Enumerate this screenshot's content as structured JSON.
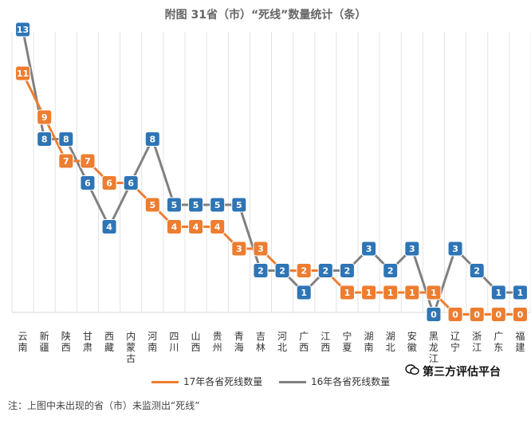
{
  "chart_data": {
    "type": "line",
    "title": "附图  31省（市）“死线”数量统计（条）",
    "categories": [
      "云南",
      "新疆",
      "陕西",
      "甘肃",
      "西藏",
      "内蒙古",
      "河南",
      "四川",
      "山西",
      "贵州",
      "青海",
      "吉林",
      "河北",
      "广西",
      "江西",
      "宁夏",
      "湖南",
      "湖北",
      "安徽",
      "黑龙江",
      "辽宁",
      "浙江",
      "广东",
      "福建"
    ],
    "series": [
      {
        "name": "17年各省死线数量",
        "color": "#ED7D31",
        "values": [
          11,
          9,
          7,
          7,
          6,
          6,
          5,
          4,
          4,
          4,
          3,
          3,
          2,
          2,
          2,
          1,
          1,
          1,
          1,
          1,
          0,
          0,
          0,
          0
        ]
      },
      {
        "name": "16年各省死线数量",
        "color": "#2E75B6",
        "line_color": "#808080",
        "values": [
          13,
          8,
          8,
          6,
          4,
          6,
          8,
          5,
          5,
          5,
          5,
          2,
          2,
          1,
          2,
          2,
          3,
          2,
          3,
          0,
          3,
          2,
          1,
          1
        ]
      }
    ],
    "ylim": [
      0,
      14
    ],
    "grid": "vertical"
  },
  "watermark": "第三方评估平台",
  "watermark_icon": "wechat-icon",
  "footnote": "注：上图中未出现的省（市）未监测出“死线”"
}
